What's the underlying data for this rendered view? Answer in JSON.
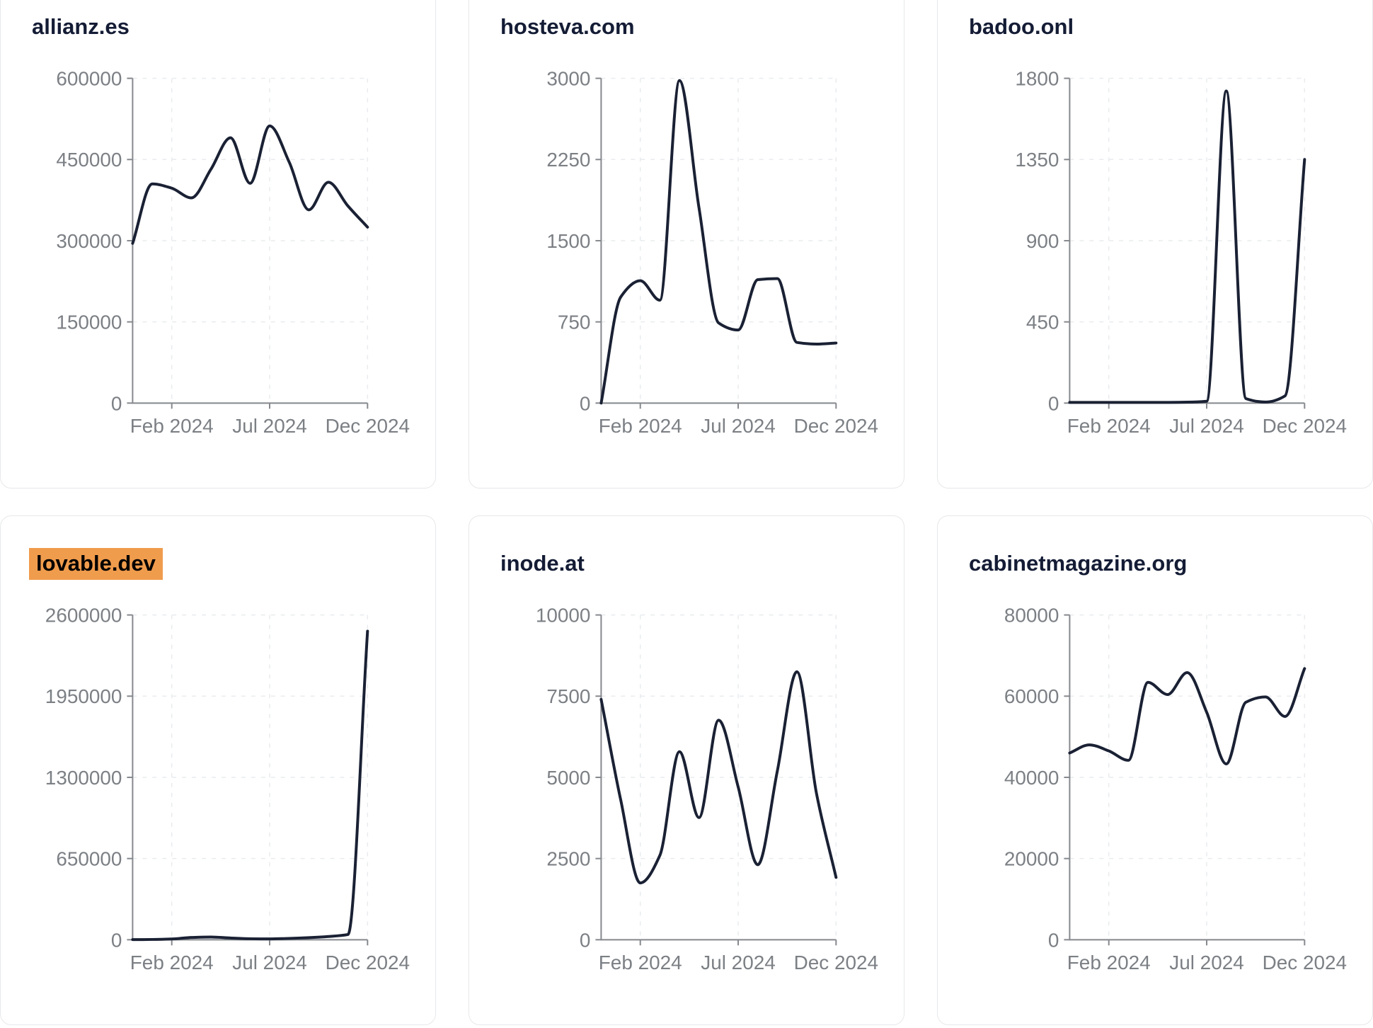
{
  "page": {
    "colors": {
      "background": "#ffffff",
      "card-bg": "#ffffff",
      "card-border": "#e7e8ea",
      "title": "#141c35",
      "line": "#1a2134",
      "axis": "#85888d",
      "tick-label": "#7c8085",
      "grid": "#e9ebee",
      "highlight-bg": "#f09c4d",
      "highlight-text": "#000000"
    }
  },
  "axes": {
    "x_tick_labels": [
      "Feb 2024",
      "Jul 2024",
      "Dec 2024"
    ],
    "x_tick_indices": [
      2,
      7,
      12
    ],
    "grid": "dashed",
    "legend": "none"
  },
  "chart_data": [
    {
      "type": "line",
      "title": "allianz.es",
      "highlighted": false,
      "x": [
        "2023-12",
        "2024-01",
        "2024-02",
        "2024-03",
        "2024-04",
        "2024-05",
        "2024-06",
        "2024-07",
        "2024-08",
        "2024-09",
        "2024-10",
        "2024-11",
        "2024-12"
      ],
      "values": [
        295000,
        405000,
        397000,
        379000,
        432000,
        490000,
        406000,
        512000,
        445000,
        357000,
        408000,
        364000,
        325000
      ],
      "ylim": [
        0,
        600000
      ],
      "yticks": [
        0,
        150000,
        300000,
        450000,
        600000
      ]
    },
    {
      "type": "line",
      "title": "hosteva.com",
      "highlighted": false,
      "x": [
        "2023-12",
        "2024-01",
        "2024-02",
        "2024-03",
        "2024-04",
        "2024-05",
        "2024-06",
        "2024-07",
        "2024-08",
        "2024-09",
        "2024-10",
        "2024-11",
        "2024-12"
      ],
      "values": [
        0,
        980,
        1130,
        950,
        2980,
        1800,
        740,
        675,
        1140,
        1150,
        560,
        545,
        555
      ],
      "ylim": [
        0,
        3000
      ],
      "yticks": [
        0,
        750,
        1500,
        2250,
        3000
      ]
    },
    {
      "type": "line",
      "title": "badoo.onl",
      "highlighted": false,
      "x": [
        "2023-12",
        "2024-01",
        "2024-02",
        "2024-03",
        "2024-04",
        "2024-05",
        "2024-06",
        "2024-07",
        "2024-08",
        "2024-09",
        "2024-10",
        "2024-11",
        "2024-12"
      ],
      "values": [
        4,
        4,
        4,
        4,
        4,
        4,
        5,
        10,
        1730,
        25,
        6,
        40,
        1350
      ],
      "ylim": [
        0,
        1800
      ],
      "yticks": [
        0,
        450,
        900,
        1350,
        1800
      ]
    },
    {
      "type": "line",
      "title": "lovable.dev",
      "highlighted": true,
      "x": [
        "2023-12",
        "2024-01",
        "2024-02",
        "2024-03",
        "2024-04",
        "2024-05",
        "2024-06",
        "2024-07",
        "2024-08",
        "2024-09",
        "2024-10",
        "2024-11",
        "2024-12"
      ],
      "values": [
        1000,
        2000,
        6000,
        18000,
        22000,
        14000,
        8000,
        7000,
        11000,
        17000,
        26000,
        42000,
        2470000
      ],
      "ylim": [
        0,
        2600000
      ],
      "yticks": [
        0,
        650000,
        1300000,
        1950000,
        2600000
      ]
    },
    {
      "type": "line",
      "title": "inode.at",
      "highlighted": false,
      "x": [
        "2023-12",
        "2024-01",
        "2024-02",
        "2024-03",
        "2024-04",
        "2024-05",
        "2024-06",
        "2024-07",
        "2024-08",
        "2024-09",
        "2024-10",
        "2024-11",
        "2024-12"
      ],
      "values": [
        7400,
        4300,
        1750,
        2600,
        5790,
        3760,
        6760,
        4700,
        2310,
        5200,
        8250,
        4500,
        1920
      ],
      "ylim": [
        0,
        10000
      ],
      "yticks": [
        0,
        2500,
        5000,
        7500,
        10000
      ]
    },
    {
      "type": "line",
      "title": "cabinetmagazine.org",
      "highlighted": false,
      "x": [
        "2023-12",
        "2024-01",
        "2024-02",
        "2024-03",
        "2024-04",
        "2024-05",
        "2024-06",
        "2024-07",
        "2024-08",
        "2024-09",
        "2024-10",
        "2024-11",
        "2024-12"
      ],
      "values": [
        46000,
        48000,
        46500,
        44200,
        63400,
        60400,
        65800,
        56000,
        43300,
        58500,
        59800,
        55000,
        66800
      ],
      "ylim": [
        0,
        80000
      ],
      "yticks": [
        0,
        20000,
        40000,
        60000,
        80000
      ]
    }
  ]
}
